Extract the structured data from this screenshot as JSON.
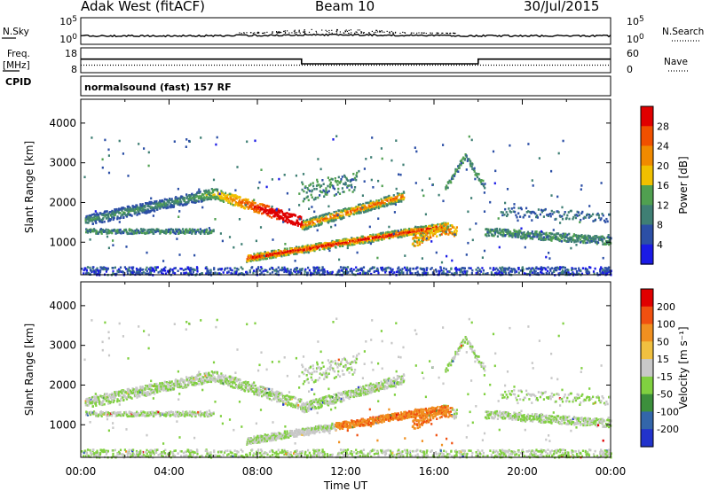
{
  "header": {
    "radar": "Adak West (fitACF)",
    "beam": "Beam 10",
    "date": "30/Jul/2015"
  },
  "left_labels": {
    "nsky": "N.Sky",
    "freq_line1": "Freq.",
    "freq_line2": "[MHz]",
    "cpid": "CPID"
  },
  "right_labels": {
    "nsearch": "N.Search",
    "nave": "Nave"
  },
  "cpid_name": "normalsound (fast) 157 RF",
  "x_axis": {
    "label": "Time UT",
    "ticks": [
      "00:00",
      "04:00",
      "08:00",
      "12:00",
      "16:00",
      "20:00",
      "00:00"
    ]
  },
  "chart_data": [
    {
      "type": "line",
      "name": "noise",
      "y_left_ticks": [
        "10^5",
        "10^0"
      ],
      "y_right_ticks": [
        "10^5",
        "10^0"
      ]
    },
    {
      "type": "line",
      "name": "frequency-nave",
      "y_left_ticks": [
        "18",
        "8"
      ],
      "y_right_ticks": [
        "60",
        "0"
      ],
      "x_hours": [
        0,
        10,
        10,
        18,
        18,
        24
      ],
      "freq_mhz": [
        13.7,
        13.7,
        10.8,
        10.8,
        13.7,
        13.7
      ],
      "nave": [
        15,
        15,
        15,
        15,
        15,
        15
      ]
    },
    {
      "type": "heatmap",
      "name": "power",
      "ylabel": "Slant Range [km]",
      "yticks": [
        "1000",
        "2000",
        "3000",
        "4000"
      ],
      "ylim": [
        180,
        4600
      ],
      "xlim": [
        0,
        24
      ],
      "colorbar": {
        "label": "Power [dB]",
        "ticks": [
          "4",
          "8",
          "12",
          "16",
          "20",
          "24",
          "28"
        ],
        "colors": [
          "#1a1ae6",
          "#2c4fa6",
          "#3f7f74",
          "#50a050",
          "#f0c000",
          "#f08a00",
          "#f05000",
          "#e00000"
        ]
      }
    },
    {
      "type": "heatmap",
      "name": "velocity",
      "ylabel": "Slant Range [km]",
      "yticks": [
        "1000",
        "2000",
        "3000",
        "4000"
      ],
      "ylim": [
        180,
        4600
      ],
      "xlim": [
        0,
        24
      ],
      "colorbar": {
        "label": "Velocity [m s⁻¹]",
        "ticks": [
          "200",
          "100",
          "50",
          "15",
          "-15",
          "-50",
          "-100",
          "-200"
        ],
        "colors": [
          "#2233cc",
          "#3366aa",
          "#3c8f3c",
          "#80d040",
          "#c8c8c8",
          "#f0c040",
          "#f09020",
          "#f05010",
          "#e00000"
        ]
      }
    }
  ]
}
